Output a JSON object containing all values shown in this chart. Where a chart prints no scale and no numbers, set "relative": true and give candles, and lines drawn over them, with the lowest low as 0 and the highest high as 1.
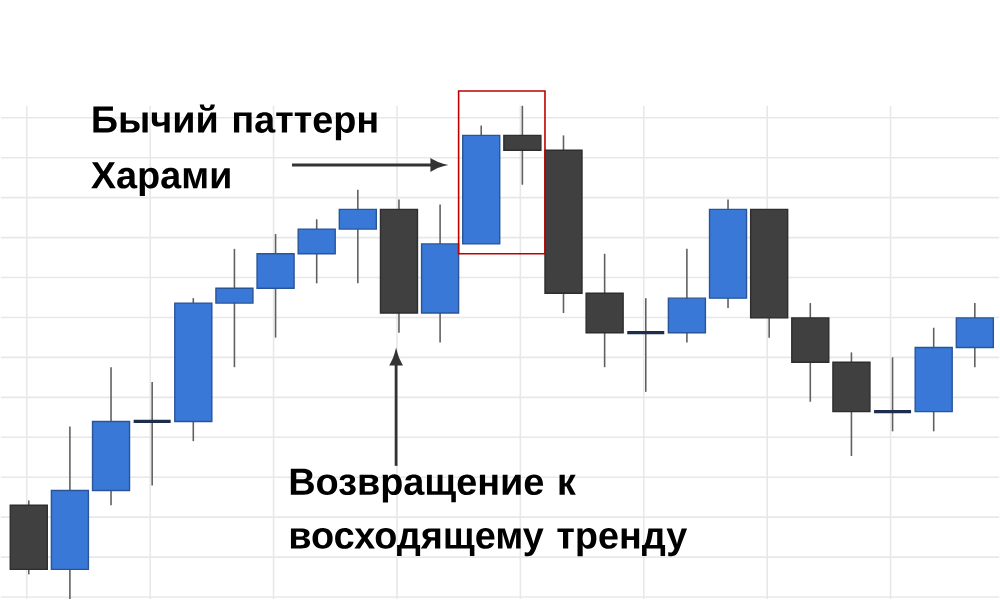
{
  "chart_data": {
    "type": "candlestick",
    "relative": true,
    "grid": true,
    "categories": [
      null,
      null,
      null,
      null,
      null,
      null,
      null,
      null,
      null,
      null,
      null,
      null,
      null,
      null,
      null,
      null,
      null,
      null,
      null,
      null,
      null,
      null,
      null,
      null
    ],
    "ohlc": [
      [
        0.19,
        0.2,
        0.05,
        0.06
      ],
      [
        0.06,
        0.35,
        0,
        0.22
      ],
      [
        0.22,
        0.47,
        0.19,
        0.36
      ],
      [
        0.36,
        0.44,
        0.23,
        0.36
      ],
      [
        0.36,
        0.61,
        0.32,
        0.6
      ],
      [
        0.6,
        0.71,
        0.47,
        0.63
      ],
      [
        0.63,
        0.74,
        0.53,
        0.7
      ],
      [
        0.7,
        0.77,
        0.64,
        0.75
      ],
      [
        0.75,
        0.83,
        0.64,
        0.79
      ],
      [
        0.79,
        0.81,
        0.54,
        0.58
      ],
      [
        0.58,
        0.8,
        0.52,
        0.72
      ],
      [
        0.72,
        0.96,
        0.72,
        0.94
      ],
      [
        0.94,
        1,
        0.84,
        0.91
      ],
      [
        0.91,
        0.94,
        0.58,
        0.62
      ],
      [
        0.62,
        0.7,
        0.47,
        0.54
      ],
      [
        0.54,
        0.61,
        0.42,
        0.54
      ],
      [
        0.54,
        0.71,
        0.52,
        0.61
      ],
      [
        0.61,
        0.81,
        0.59,
        0.79
      ],
      [
        0.79,
        0.79,
        0.53,
        0.57
      ],
      [
        0.57,
        0.6,
        0.4,
        0.48
      ],
      [
        0.48,
        0.5,
        0.29,
        0.38
      ],
      [
        0.38,
        0.49,
        0.34,
        0.38
      ],
      [
        0.38,
        0.55,
        0.34,
        0.51
      ],
      [
        0.51,
        0.6,
        0.47,
        0.57
      ]
    ],
    "colors": [
      "#404040",
      "#3a78d8",
      "#3a78d8",
      "#1f2d4d",
      "#3a78d8",
      "#3a78d8",
      "#3a78d8",
      "#3a78d8",
      "#3a78d8",
      "#404040",
      "#3a78d8",
      "#3a78d8",
      "#404040",
      "#404040",
      "#404040",
      "#1f2d4d",
      "#3a78d8",
      "#3a78d8",
      "#404040",
      "#404040",
      "#404040",
      "#1f2d4d",
      "#3a78d8",
      "#3a78d8"
    ],
    "annotations": [
      "Бычий паттерн Харами",
      "Возвращение к восходящему тренду"
    ]
  }
}
